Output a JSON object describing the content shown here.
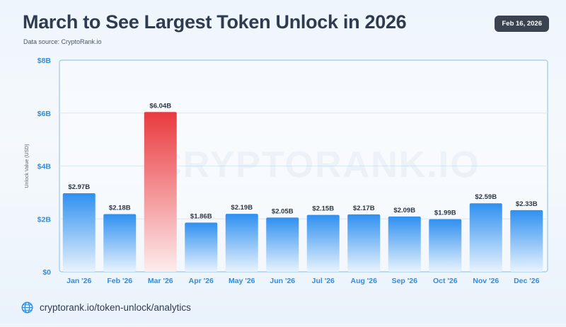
{
  "header": {
    "title": "March to See Largest Token Unlock in 2026",
    "source": "Data source: CryptoRank.io",
    "date": "Feb 16, 2026"
  },
  "footer": {
    "url": "cryptorank.io/token-unlock/analytics",
    "icon": "globe-icon"
  },
  "watermark": "CRYPTORANK.IO",
  "colors": {
    "bar_top": "#2f90f0",
    "bar_bottom": "#e8f3fd",
    "highlight_top": "#e93a3f",
    "highlight_bottom": "#fdeced",
    "axis_label": "#2f8de4",
    "frame": "#9cc8ef"
  },
  "chart_data": {
    "type": "bar",
    "title": "March to See Largest Token Unlock in 2026",
    "ylabel": "Unlock Value (USD)",
    "xlabel": "",
    "ylim": [
      0,
      8
    ],
    "yticks": [
      0,
      2,
      4,
      6,
      8
    ],
    "ytick_labels": [
      "$0",
      "$2B",
      "$4B",
      "$6B",
      "$8B"
    ],
    "categories": [
      "Jan '26",
      "Feb '26",
      "Mar '26",
      "Apr '26",
      "May '26",
      "Jun '26",
      "Jul '26",
      "Aug '26",
      "Sep '26",
      "Oct '26",
      "Nov '26",
      "Dec '26"
    ],
    "values": [
      2.97,
      2.18,
      6.04,
      1.86,
      2.19,
      2.05,
      2.15,
      2.17,
      2.09,
      1.99,
      2.59,
      2.33
    ],
    "data_labels": [
      "$2.97B",
      "$2.18B",
      "$6.04B",
      "$1.86B",
      "$2.19B",
      "$2.05B",
      "$2.15B",
      "$2.17B",
      "$2.09B",
      "$1.99B",
      "$2.59B",
      "$2.33B"
    ],
    "highlight_category": "Mar '26",
    "grid": true
  }
}
